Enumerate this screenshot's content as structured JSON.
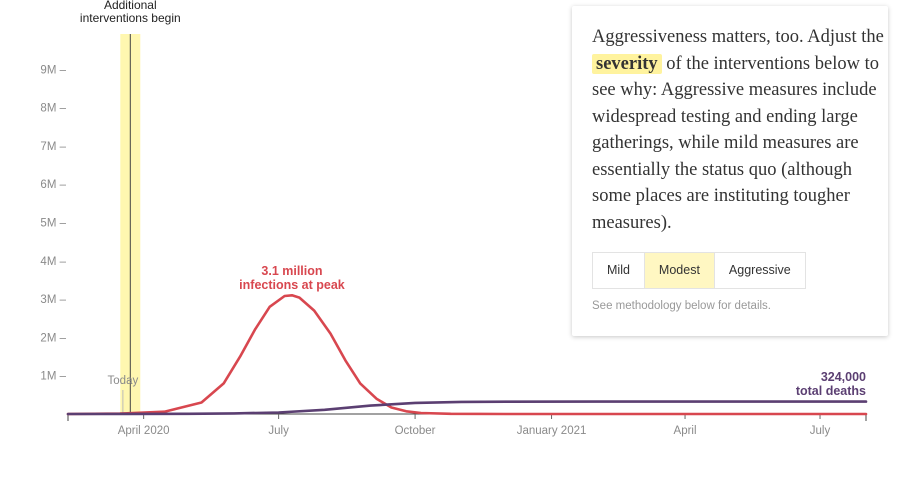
{
  "chart_data": {
    "type": "line",
    "x_unit": "month",
    "ylim": [
      0,
      10000000
    ],
    "y_ticks": [
      "1M",
      "2M",
      "3M",
      "4M",
      "5M",
      "6M",
      "7M",
      "8M",
      "9M"
    ],
    "x_ticks": [
      {
        "label": "April 2020",
        "x": "2020-04"
      },
      {
        "label": "July",
        "x": "2020-07"
      },
      {
        "label": "October",
        "x": "2020-10"
      },
      {
        "label": "January 2021",
        "x": "2021-01"
      },
      {
        "label": "April",
        "x": "2021-04"
      },
      {
        "label": "July",
        "x": "2021-07"
      }
    ],
    "xlim": [
      "2020-02-10",
      "2021-08-01"
    ],
    "series": [
      {
        "color": "#d8474f",
        "x": [
          "2020-02-10",
          "2020-03-16",
          "2020-04-15",
          "2020-05-10",
          "2020-05-25",
          "2020-06-05",
          "2020-06-15",
          "2020-06-25",
          "2020-07-05",
          "2020-07-10",
          "2020-07-15",
          "2020-07-25",
          "2020-08-05",
          "2020-08-15",
          "2020-08-25",
          "2020-09-05",
          "2020-09-15",
          "2020-09-25",
          "2020-10-05",
          "2020-10-25",
          "2020-12-01",
          "2021-08-01"
        ],
        "y": [
          0,
          10000,
          60000,
          300000,
          800000,
          1500000,
          2200000,
          2800000,
          3080000,
          3100000,
          3040000,
          2700000,
          2100000,
          1400000,
          800000,
          400000,
          170000,
          70000,
          25000,
          5000,
          0,
          0
        ]
      },
      {
        "color": "#5b3f72",
        "x": [
          "2020-02-10",
          "2020-05-01",
          "2020-06-01",
          "2020-07-01",
          "2020-08-01",
          "2020-09-01",
          "2020-10-01",
          "2020-11-01",
          "2020-12-01",
          "2021-02-01",
          "2021-08-01"
        ],
        "y": [
          0,
          5000,
          15000,
          40000,
          110000,
          220000,
          290000,
          315000,
          322000,
          324000,
          324000
        ]
      }
    ],
    "interventions_label": [
      "Additional",
      "interventions begin"
    ],
    "interventions_x": "2020-03-23",
    "today_label": "Today",
    "today_x": "2020-03-18",
    "peak_label": [
      "3.1 million",
      "infections at peak"
    ],
    "deaths_label": [
      "324,000",
      "total deaths"
    ],
    "colors": {
      "infections": "#d8474f",
      "deaths": "#5b3f72",
      "band": "#fff7b0",
      "band_line": "#444444"
    }
  },
  "panel": {
    "text_before": "Aggressiveness matters, too. Adjust the",
    "highlight": "severity",
    "text_after": "of the interventions below to see why: Aggressive measures include widespread testing and ending large gatherings, while mild measures are essentially the status quo (although some places are instituting tougher measures).",
    "options": [
      "Mild",
      "Modest",
      "Aggressive"
    ],
    "selected": "Modest",
    "note": "See methodology below for details."
  }
}
